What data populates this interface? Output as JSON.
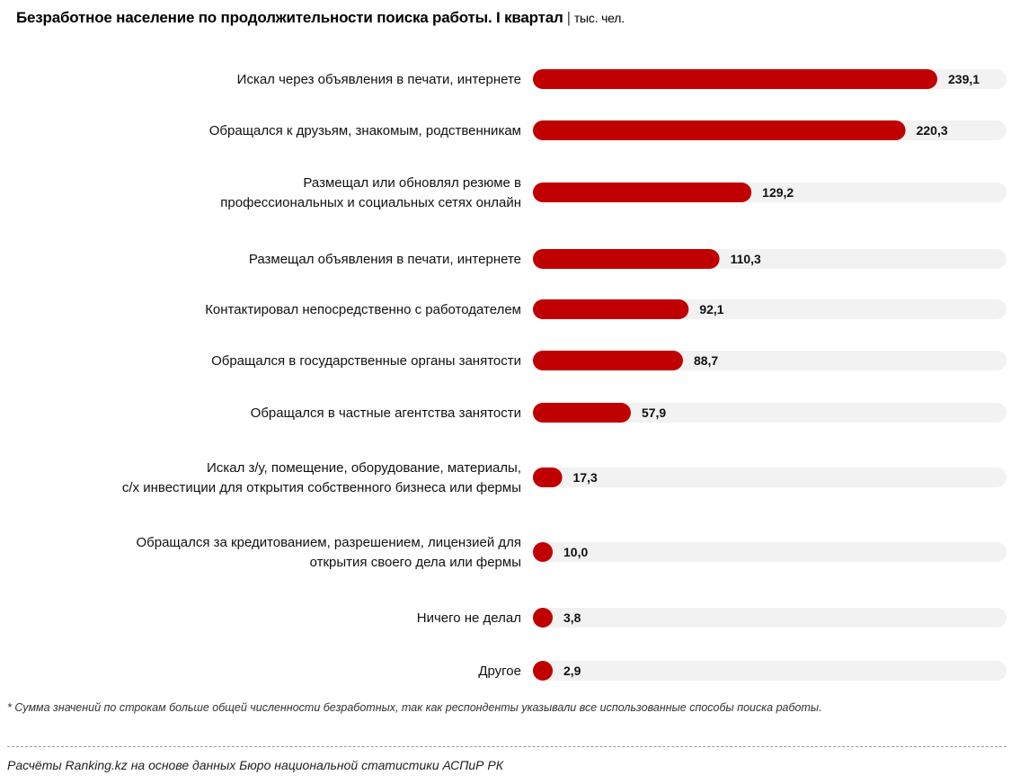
{
  "header": {
    "title": "Безработное население по продолжительности поиска работы. I квартал",
    "separator": "|",
    "unit": "тыс. чел."
  },
  "colors": {
    "bar": "#c00000",
    "track": "#f2f2f2"
  },
  "chart_data": {
    "type": "bar",
    "orientation": "horizontal",
    "title": "Безработное население по продолжительности поиска работы. I квартал",
    "unit": "тыс. чел.",
    "categories": [
      [
        "Искал через объявления в печати, интернете"
      ],
      [
        "Обращался к друзьям, знакомым, родственникам"
      ],
      [
        "Размещал или обновлял резюме в",
        "профессиональных и социальных сетях онлайн"
      ],
      [
        "Размещал объявления в печати, интернете"
      ],
      [
        "Контактировал непосредственно с работодателем"
      ],
      [
        "Обращался в государственные органы занятости"
      ],
      [
        "Обращался в частные агентства занятости"
      ],
      [
        "Искал з/у, помещение, оборудование, материалы,",
        "с/х инвестиции для открытия собственного бизнеса или фермы"
      ],
      [
        "Обращался за кредитованием, разрешением, лицензией для",
        "открытия своего дела или фермы"
      ],
      [
        "Ничего не делал"
      ],
      [
        "Другое"
      ]
    ],
    "values": [
      239.1,
      220.3,
      129.2,
      110.3,
      92.1,
      88.7,
      57.9,
      17.3,
      10.0,
      3.8,
      2.9
    ],
    "value_labels": [
      "239,1",
      "220,3",
      "129,2",
      "110,3",
      "92,1",
      "88,7",
      "57,9",
      "17,3",
      "10,0",
      "3,8",
      "2,9"
    ],
    "xlim": [
      0,
      239.1
    ],
    "grid": false,
    "legend": "none"
  },
  "footer": {
    "note": "* Сумма значений по строкам больше общей численности безработных, так как респонденты указывали все использованные способы поиска работы.",
    "source": "Расчёты Ranking.kz на основе данных  Бюро национальной  статистики АСПиР РК"
  }
}
